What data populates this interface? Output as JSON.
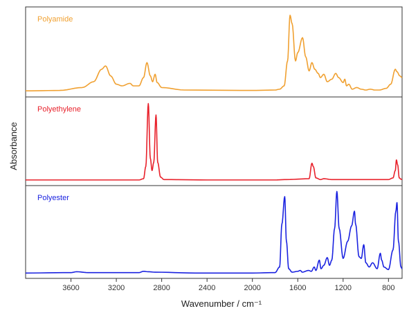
{
  "chart_data": {
    "type": "line",
    "title": "",
    "xlabel": "Wavenumber / cm⁻¹",
    "ylabel": "Absorbance",
    "xlim": [
      4000,
      680
    ],
    "x_reversed": true,
    "xticks": [
      3600,
      3200,
      2800,
      2400,
      2000,
      1600,
      1200,
      800
    ],
    "grid": false,
    "layout": "three stacked panels, shared x axis",
    "series": [
      {
        "name": "Polyamide",
        "color": "#F0A030",
        "baseline": 0.04,
        "points": [
          [
            4000,
            0.04
          ],
          [
            3700,
            0.045
          ],
          [
            3500,
            0.08
          ],
          [
            3400,
            0.15
          ],
          [
            3330,
            0.3
          ],
          [
            3295,
            0.34
          ],
          [
            3250,
            0.22
          ],
          [
            3200,
            0.12
          ],
          [
            3150,
            0.1
          ],
          [
            3080,
            0.13
          ],
          [
            3050,
            0.1
          ],
          [
            3000,
            0.1
          ],
          [
            2960,
            0.2
          ],
          [
            2930,
            0.38
          ],
          [
            2900,
            0.22
          ],
          [
            2880,
            0.15
          ],
          [
            2858,
            0.24
          ],
          [
            2840,
            0.14
          ],
          [
            2800,
            0.08
          ],
          [
            2600,
            0.05
          ],
          [
            2000,
            0.045
          ],
          [
            1800,
            0.05
          ],
          [
            1760,
            0.06
          ],
          [
            1720,
            0.1
          ],
          [
            1690,
            0.4
          ],
          [
            1668,
            0.95
          ],
          [
            1650,
            0.85
          ],
          [
            1620,
            0.4
          ],
          [
            1600,
            0.5
          ],
          [
            1558,
            0.68
          ],
          [
            1530,
            0.45
          ],
          [
            1500,
            0.28
          ],
          [
            1475,
            0.38
          ],
          [
            1450,
            0.3
          ],
          [
            1420,
            0.25
          ],
          [
            1400,
            0.2
          ],
          [
            1370,
            0.24
          ],
          [
            1340,
            0.15
          ],
          [
            1300,
            0.18
          ],
          [
            1265,
            0.25
          ],
          [
            1240,
            0.2
          ],
          [
            1200,
            0.14
          ],
          [
            1185,
            0.18
          ],
          [
            1170,
            0.1
          ],
          [
            1150,
            0.12
          ],
          [
            1120,
            0.06
          ],
          [
            1080,
            0.08
          ],
          [
            1040,
            0.06
          ],
          [
            1000,
            0.05
          ],
          [
            960,
            0.06
          ],
          [
            920,
            0.05
          ],
          [
            880,
            0.05
          ],
          [
            820,
            0.07
          ],
          [
            780,
            0.12
          ],
          [
            740,
            0.3
          ],
          [
            725,
            0.27
          ],
          [
            700,
            0.22
          ],
          [
            680,
            0.2
          ]
        ]
      },
      {
        "name": "Polyethylene",
        "color": "#E8202A",
        "baseline": 0.035,
        "points": [
          [
            4000,
            0.035
          ],
          [
            3000,
            0.035
          ],
          [
            2960,
            0.05
          ],
          [
            2940,
            0.2
          ],
          [
            2918,
            0.97
          ],
          [
            2900,
            0.3
          ],
          [
            2885,
            0.15
          ],
          [
            2870,
            0.25
          ],
          [
            2850,
            0.83
          ],
          [
            2835,
            0.25
          ],
          [
            2810,
            0.07
          ],
          [
            2780,
            0.04
          ],
          [
            2400,
            0.035
          ],
          [
            1800,
            0.035
          ],
          [
            1700,
            0.04
          ],
          [
            1500,
            0.05
          ],
          [
            1475,
            0.24
          ],
          [
            1463,
            0.2
          ],
          [
            1440,
            0.06
          ],
          [
            1400,
            0.04
          ],
          [
            1370,
            0.05
          ],
          [
            1300,
            0.04
          ],
          [
            800,
            0.04
          ],
          [
            760,
            0.06
          ],
          [
            740,
            0.15
          ],
          [
            730,
            0.28
          ],
          [
            719,
            0.22
          ],
          [
            705,
            0.06
          ],
          [
            690,
            0.045
          ],
          [
            680,
            0.04
          ]
        ]
      },
      {
        "name": "Polyester",
        "color": "#1A22E0",
        "baseline": 0.03,
        "points": [
          [
            4000,
            0.03
          ],
          [
            3600,
            0.035
          ],
          [
            3550,
            0.045
          ],
          [
            3450,
            0.035
          ],
          [
            3000,
            0.035
          ],
          [
            2960,
            0.05
          ],
          [
            2920,
            0.045
          ],
          [
            2860,
            0.04
          ],
          [
            2500,
            0.03
          ],
          [
            2000,
            0.03
          ],
          [
            1800,
            0.035
          ],
          [
            1760,
            0.1
          ],
          [
            1740,
            0.6
          ],
          [
            1715,
            0.92
          ],
          [
            1700,
            0.4
          ],
          [
            1680,
            0.08
          ],
          [
            1650,
            0.04
          ],
          [
            1600,
            0.05
          ],
          [
            1578,
            0.06
          ],
          [
            1560,
            0.04
          ],
          [
            1505,
            0.06
          ],
          [
            1480,
            0.05
          ],
          [
            1455,
            0.1
          ],
          [
            1440,
            0.06
          ],
          [
            1410,
            0.18
          ],
          [
            1395,
            0.08
          ],
          [
            1370,
            0.12
          ],
          [
            1340,
            0.21
          ],
          [
            1320,
            0.12
          ],
          [
            1300,
            0.18
          ],
          [
            1275,
            0.55
          ],
          [
            1255,
            0.98
          ],
          [
            1235,
            0.55
          ],
          [
            1200,
            0.2
          ],
          [
            1160,
            0.4
          ],
          [
            1125,
            0.58
          ],
          [
            1100,
            0.75
          ],
          [
            1090,
            0.6
          ],
          [
            1060,
            0.22
          ],
          [
            1040,
            0.2
          ],
          [
            1018,
            0.36
          ],
          [
            1000,
            0.15
          ],
          [
            970,
            0.1
          ],
          [
            940,
            0.15
          ],
          [
            900,
            0.08
          ],
          [
            872,
            0.26
          ],
          [
            860,
            0.18
          ],
          [
            840,
            0.1
          ],
          [
            800,
            0.07
          ],
          [
            760,
            0.3
          ],
          [
            735,
            0.75
          ],
          [
            725,
            0.85
          ],
          [
            712,
            0.4
          ],
          [
            690,
            0.1
          ],
          [
            680,
            0.08
          ]
        ]
      }
    ]
  }
}
